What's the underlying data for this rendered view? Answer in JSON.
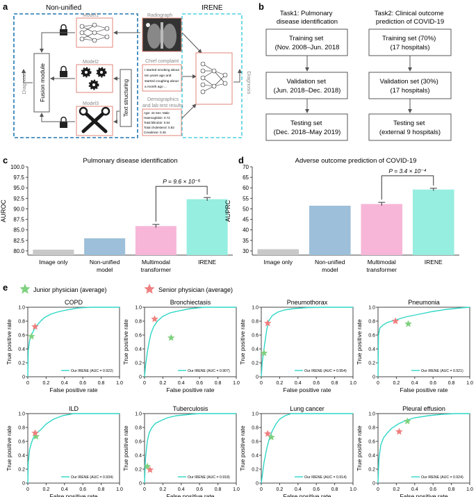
{
  "panel_letters": [
    "a",
    "b",
    "c",
    "d",
    "e"
  ],
  "colors": {
    "dashed_blue": "#1f77b4",
    "dashed_cyan": "#4fd0e0",
    "roc": "#2ed6c6",
    "bar_grey": "#c8c8c8",
    "bar_blue": "#9dbfd9",
    "bar_pink": "#f7b6d8",
    "bar_teal": "#96eee0",
    "junior": "#7fd17f",
    "senior": "#ef7f7f",
    "model_box": "#e2857a",
    "icon": "#1a1a1a"
  },
  "panel_a": {
    "nonunified_label": "Non-unified",
    "irene_label": "IRENE",
    "radiograph_label": "Radiograph",
    "complaint_label": "Chief complaint",
    "complaint_text": [
      "I started smoking about",
      "ten years ago and",
      "started coughing about",
      "a month ago ..."
    ],
    "demographics_label": [
      "Demographics",
      "and lab test results"
    ],
    "demographics_text": [
      "Age: 43 Sex: Male",
      "Haemoglobin: 0.72",
      "Total bilirubin: 0.54",
      "Total cholesterol: 0.83",
      "Creatinine: 0.45"
    ],
    "model_labels": [
      "Model1",
      "Model2",
      "Model3"
    ],
    "fusion_label": "Fusion module",
    "text_structuring_label": "Text structuring",
    "diagnosis_label": "Diagnosis",
    "diagnosis_right_label": "Diagnosis",
    "icons": [
      "lock-icon",
      "neural-network-icon",
      "gears-icon",
      "tools-icon",
      "radiograph-image-icon"
    ]
  },
  "panel_b": {
    "task1_title": [
      "Task1: Pulmonary",
      "disease identification"
    ],
    "task2_title": [
      "Task2: Clinical outcome",
      "prediction of COVID-19"
    ],
    "task1_boxes": [
      [
        "Training set",
        "(Nov. 2008–Jun. 2018"
      ],
      [
        "Validation set",
        "(Jun. 2018–Dec. 2018)"
      ],
      [
        "Testing set",
        "(Dec. 2018–May 2019)"
      ]
    ],
    "task2_boxes": [
      [
        "Training set (70%)",
        "(17 hospitals)"
      ],
      [
        "Validation set (30%)",
        "(17 hospitals)"
      ],
      [
        "Testing set",
        "(external 9 hospitals)"
      ]
    ]
  },
  "chart_data": [
    {
      "id": "c",
      "type": "bar",
      "title": "Pulmonary disease identification",
      "ylabel": "AUROC",
      "categories": [
        [
          "Image only"
        ],
        [
          "Non-unified",
          "model"
        ],
        [
          "Multimodal",
          "transformer"
        ],
        [
          "IRENE"
        ]
      ],
      "values": [
        80.3,
        83.0,
        85.9,
        92.3
      ],
      "errors": [
        0,
        0,
        0.4,
        0.4
      ],
      "ylim": [
        79.0,
        100.0
      ],
      "yticks": [
        "80.0",
        "82.5",
        "85.0",
        "87.5",
        "90.0",
        "92.5",
        "95.0",
        "97.5",
        "100.0"
      ],
      "annotation": "P = 9.6 × 10⁻⁵"
    },
    {
      "id": "d",
      "type": "bar",
      "title": "Adverse outcome prediction of COVID-19",
      "ylabel": "AUPRC",
      "categories": [
        [
          "Image only"
        ],
        [
          "Non-unified",
          "model"
        ],
        [
          "Multimodal",
          "transformer"
        ],
        [
          "IRENE"
        ]
      ],
      "values": [
        30.8,
        51.5,
        52.3,
        59.2
      ],
      "errors": [
        0,
        0,
        0.8,
        0.6
      ],
      "ylim": [
        28,
        70
      ],
      "yticks": [
        "30",
        "35",
        "40",
        "45",
        "50",
        "55",
        "60",
        "65",
        "70"
      ],
      "annotation": "P = 3.4 × 10⁻⁴"
    },
    {
      "id": "e",
      "type": "line",
      "xlabel": "False positive rate",
      "ylabel": "True positive rate",
      "xlim": [
        0,
        1
      ],
      "ylim": [
        0,
        1
      ],
      "ticks": [
        "0",
        "0.2",
        "0.4",
        "0.6",
        "0.8",
        "1.0"
      ],
      "legend": {
        "junior": "Junior physician (average)",
        "senior": "Senior physician (average)"
      },
      "series_label_prefix": "Our IRENE",
      "subplots": [
        {
          "title": "COPD",
          "auc": "(AUC = 0.922)",
          "curve": [
            [
              0,
              0
            ],
            [
              0.005,
              0.38
            ],
            [
              0.02,
              0.52
            ],
            [
              0.04,
              0.6
            ],
            [
              0.07,
              0.68
            ],
            [
              0.1,
              0.74
            ],
            [
              0.14,
              0.8
            ],
            [
              0.18,
              0.85
            ],
            [
              0.25,
              0.9
            ],
            [
              0.32,
              0.93
            ],
            [
              0.42,
              0.96
            ],
            [
              0.55,
              0.99
            ],
            [
              0.7,
              1.0
            ],
            [
              1,
              1
            ]
          ],
          "junior": [
            0.04,
            0.58
          ],
          "senior": [
            0.08,
            0.72
          ]
        },
        {
          "title": "Bronchiectasis",
          "auc": "(AUC = 0.907)",
          "curve": [
            [
              0,
              0
            ],
            [
              0.01,
              0.15
            ],
            [
              0.03,
              0.35
            ],
            [
              0.05,
              0.5
            ],
            [
              0.07,
              0.62
            ],
            [
              0.1,
              0.72
            ],
            [
              0.14,
              0.8
            ],
            [
              0.2,
              0.87
            ],
            [
              0.28,
              0.92
            ],
            [
              0.38,
              0.95
            ],
            [
              0.5,
              0.98
            ],
            [
              0.65,
              1.0
            ],
            [
              1,
              1
            ]
          ],
          "junior": [
            0.29,
            0.56
          ],
          "senior": [
            0.11,
            0.83
          ]
        },
        {
          "title": "Pneumothorax",
          "auc": "(AUC = 0.954)",
          "curve": [
            [
              0,
              0
            ],
            [
              0.01,
              0.2
            ],
            [
              0.02,
              0.3
            ],
            [
              0.04,
              0.5
            ],
            [
              0.06,
              0.68
            ],
            [
              0.08,
              0.8
            ],
            [
              0.12,
              0.88
            ],
            [
              0.18,
              0.93
            ],
            [
              0.25,
              0.96
            ],
            [
              0.35,
              0.98
            ],
            [
              0.5,
              0.995
            ],
            [
              0.7,
              1.0
            ],
            [
              1,
              1
            ]
          ],
          "junior": [
            0.03,
            0.34
          ],
          "senior": [
            0.07,
            0.77
          ]
        },
        {
          "title": "Pneumonia",
          "auc": "(AUC = 0.921)",
          "curve": [
            [
              0,
              0
            ],
            [
              0.005,
              0.6
            ],
            [
              0.02,
              0.7
            ],
            [
              0.05,
              0.74
            ],
            [
              0.1,
              0.78
            ],
            [
              0.2,
              0.82
            ],
            [
              0.3,
              0.86
            ],
            [
              0.45,
              0.9
            ],
            [
              0.6,
              0.94
            ],
            [
              0.75,
              0.97
            ],
            [
              0.9,
              0.99
            ],
            [
              1,
              1
            ]
          ],
          "junior": [
            0.33,
            0.76
          ],
          "senior": [
            0.19,
            0.8
          ]
        },
        {
          "title": "ILD",
          "auc": "(AUC = 0.934)",
          "curve": [
            [
              0,
              0
            ],
            [
              0.005,
              0.3
            ],
            [
              0.02,
              0.48
            ],
            [
              0.04,
              0.58
            ],
            [
              0.06,
              0.65
            ],
            [
              0.1,
              0.72
            ],
            [
              0.15,
              0.78
            ],
            [
              0.2,
              0.85
            ],
            [
              0.28,
              0.92
            ],
            [
              0.38,
              0.97
            ],
            [
              0.5,
              1.0
            ],
            [
              1,
              1
            ]
          ],
          "junior": [
            0.09,
            0.67
          ],
          "senior": [
            0.08,
            0.72
          ]
        },
        {
          "title": "Tuberculosis",
          "auc": "(AUC = 0.918)",
          "curve": [
            [
              0,
              0
            ],
            [
              0.005,
              0.2
            ],
            [
              0.01,
              0.35
            ],
            [
              0.03,
              0.6
            ],
            [
              0.05,
              0.72
            ],
            [
              0.08,
              0.8
            ],
            [
              0.12,
              0.86
            ],
            [
              0.18,
              0.9
            ],
            [
              0.25,
              0.94
            ],
            [
              0.35,
              0.97
            ],
            [
              0.5,
              0.99
            ],
            [
              0.6,
              1.0
            ],
            [
              1,
              1
            ]
          ],
          "junior": [
            0.03,
            0.24
          ],
          "senior": [
            0.06,
            0.19
          ]
        },
        {
          "title": "Lung cancer",
          "auc": "(AUC = 0.914)",
          "curve": [
            [
              0,
              0
            ],
            [
              0.01,
              0.1
            ],
            [
              0.03,
              0.3
            ],
            [
              0.06,
              0.5
            ],
            [
              0.09,
              0.65
            ],
            [
              0.12,
              0.75
            ],
            [
              0.16,
              0.85
            ],
            [
              0.2,
              0.92
            ],
            [
              0.26,
              0.97
            ],
            [
              0.33,
              1.0
            ],
            [
              1,
              1
            ]
          ],
          "junior": [
            0.11,
            0.66
          ],
          "senior": [
            0.07,
            0.71
          ]
        },
        {
          "title": "Pleural effusion",
          "auc": "(AUC = 0.924)",
          "curve": [
            [
              0,
              0
            ],
            [
              0.01,
              0.35
            ],
            [
              0.03,
              0.55
            ],
            [
              0.06,
              0.65
            ],
            [
              0.1,
              0.72
            ],
            [
              0.15,
              0.79
            ],
            [
              0.22,
              0.85
            ],
            [
              0.3,
              0.9
            ],
            [
              0.4,
              0.94
            ],
            [
              0.55,
              0.97
            ],
            [
              0.7,
              0.99
            ],
            [
              0.85,
              1.0
            ],
            [
              1,
              1
            ]
          ],
          "junior": [
            0.32,
            0.89
          ],
          "senior": [
            0.23,
            0.74
          ]
        }
      ]
    }
  ]
}
